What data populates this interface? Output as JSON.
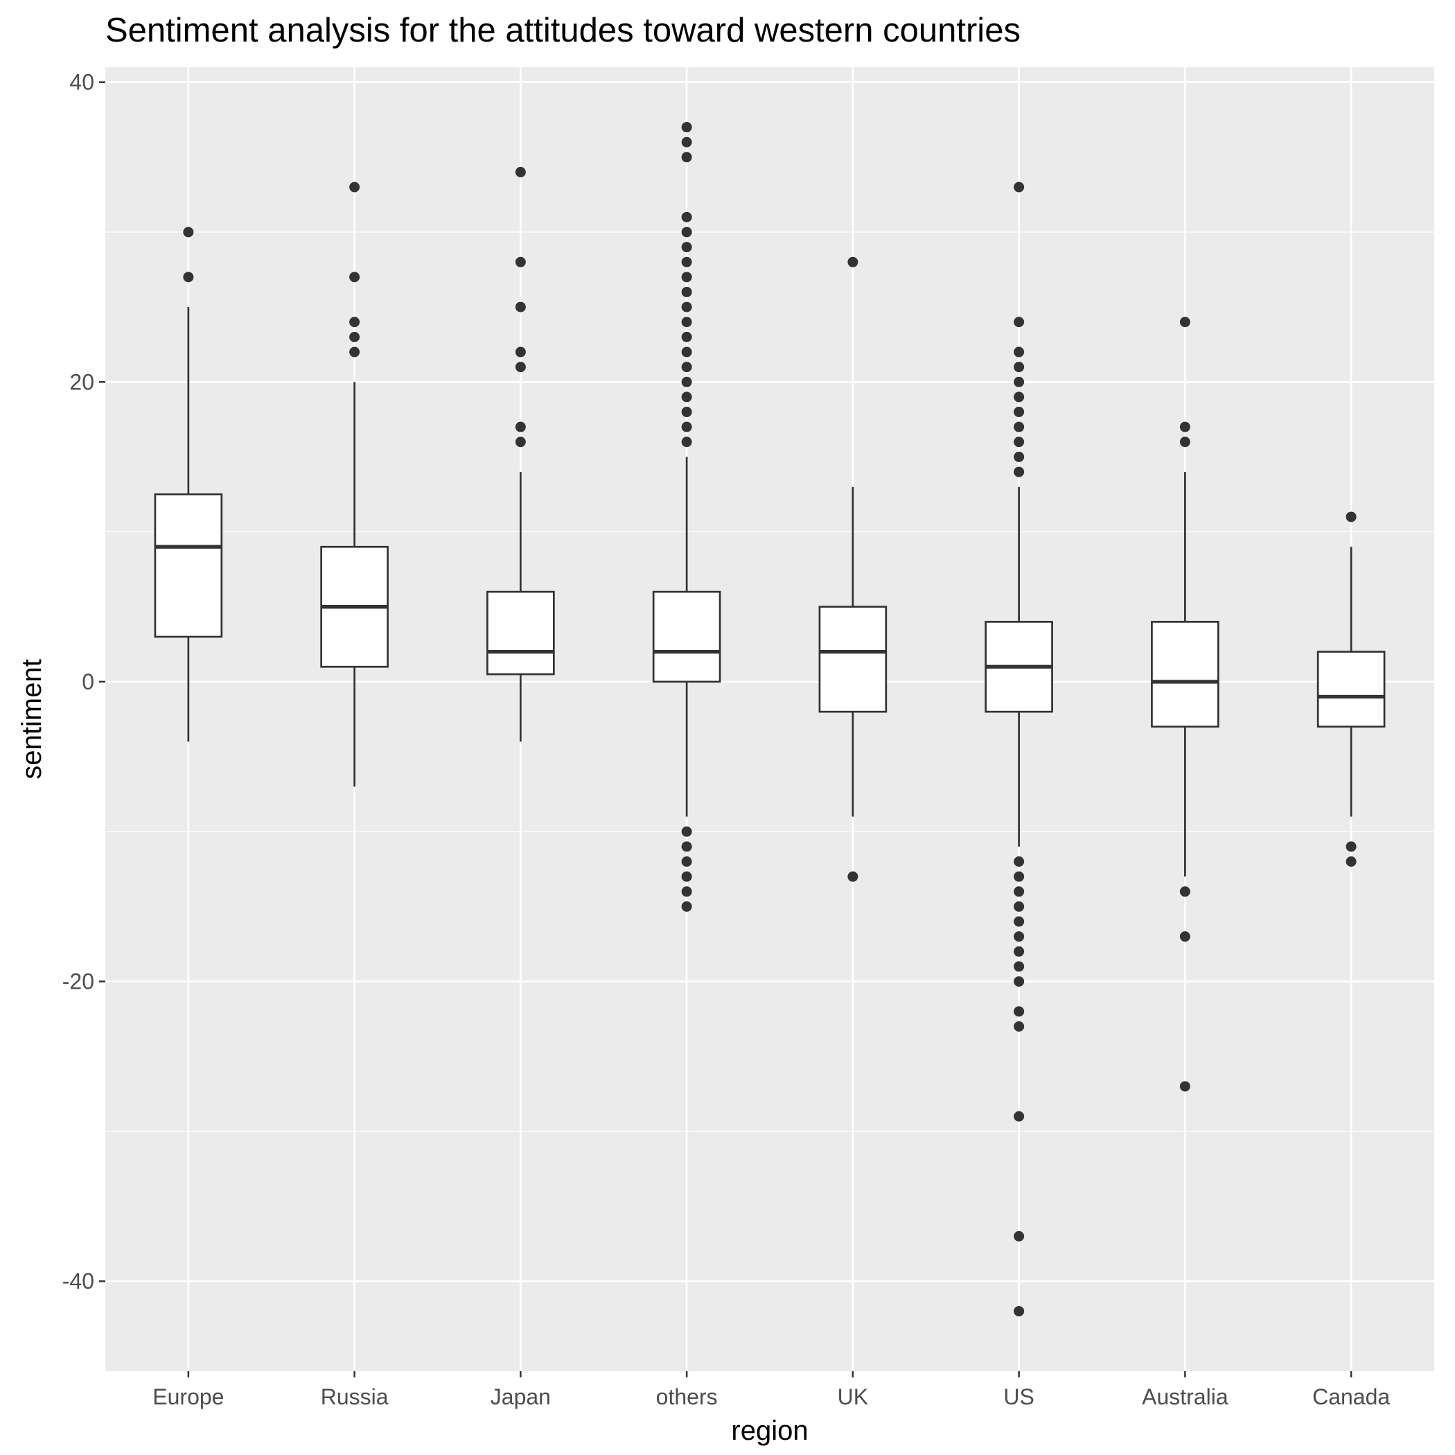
{
  "chart_data": {
    "type": "boxplot",
    "title": "Sentiment analysis for the attitudes toward western countries",
    "xlabel": "region",
    "ylabel": "sentiment",
    "ylim": [
      -46,
      41
    ],
    "y_ticks": [
      40,
      20,
      0,
      -20,
      -40
    ],
    "y_tick_labels": [
      "40",
      "20",
      "0",
      "-20",
      "-40"
    ],
    "grid": true,
    "categories": [
      "Europe",
      "Russia",
      "Japan",
      "others",
      "UK",
      "US",
      "Australia",
      "Canada"
    ],
    "boxes": [
      {
        "category": "Europe",
        "whisker_low": -4,
        "q1": 3,
        "median": 9,
        "q3": 12.5,
        "whisker_high": 25,
        "outliers": [
          30,
          27
        ]
      },
      {
        "category": "Russia",
        "whisker_low": -7,
        "q1": 1,
        "median": 5,
        "q3": 9,
        "whisker_high": 20,
        "outliers": [
          33,
          27,
          24,
          23,
          22
        ]
      },
      {
        "category": "Japan",
        "whisker_low": -4,
        "q1": 0.5,
        "median": 2,
        "q3": 6,
        "whisker_high": 14,
        "outliers": [
          34,
          28,
          25,
          22,
          21,
          17,
          16
        ]
      },
      {
        "category": "others",
        "whisker_low": -9,
        "q1": 0,
        "median": 2,
        "q3": 6,
        "whisker_high": 15,
        "outliers": [
          37,
          36,
          35,
          31,
          30,
          29,
          28,
          27,
          26,
          25,
          24,
          23,
          22,
          21,
          20,
          19,
          18,
          17,
          16,
          -10,
          -11,
          -12,
          -13,
          -14,
          -15
        ]
      },
      {
        "category": "UK",
        "whisker_low": -9,
        "q1": -2,
        "median": 2,
        "q3": 5,
        "whisker_high": 13,
        "outliers": [
          28,
          -13
        ]
      },
      {
        "category": "US",
        "whisker_low": -11,
        "q1": -2,
        "median": 1,
        "q3": 4,
        "whisker_high": 13,
        "outliers": [
          33,
          24,
          22,
          21,
          20,
          19,
          18,
          17,
          16,
          15,
          14,
          -12,
          -13,
          -14,
          -15,
          -16,
          -17,
          -18,
          -19,
          -20,
          -22,
          -23,
          -29,
          -37,
          -42
        ]
      },
      {
        "category": "Australia",
        "whisker_low": -13,
        "q1": -3,
        "median": 0,
        "q3": 4,
        "whisker_high": 14,
        "outliers": [
          24,
          17,
          16,
          -14,
          -17,
          -27
        ]
      },
      {
        "category": "Canada",
        "whisker_low": -9,
        "q1": -3,
        "median": -1,
        "q3": 2,
        "whisker_high": 9,
        "outliers": [
          11,
          -11,
          -12
        ]
      }
    ],
    "colors": {
      "panel_background": "#ebebeb",
      "grid": "#ffffff",
      "box_fill": "#ffffff",
      "box_stroke": "#333333",
      "outlier": "#333333",
      "tick_text": "#4d4d4d",
      "tick_mark": "#333333"
    }
  }
}
